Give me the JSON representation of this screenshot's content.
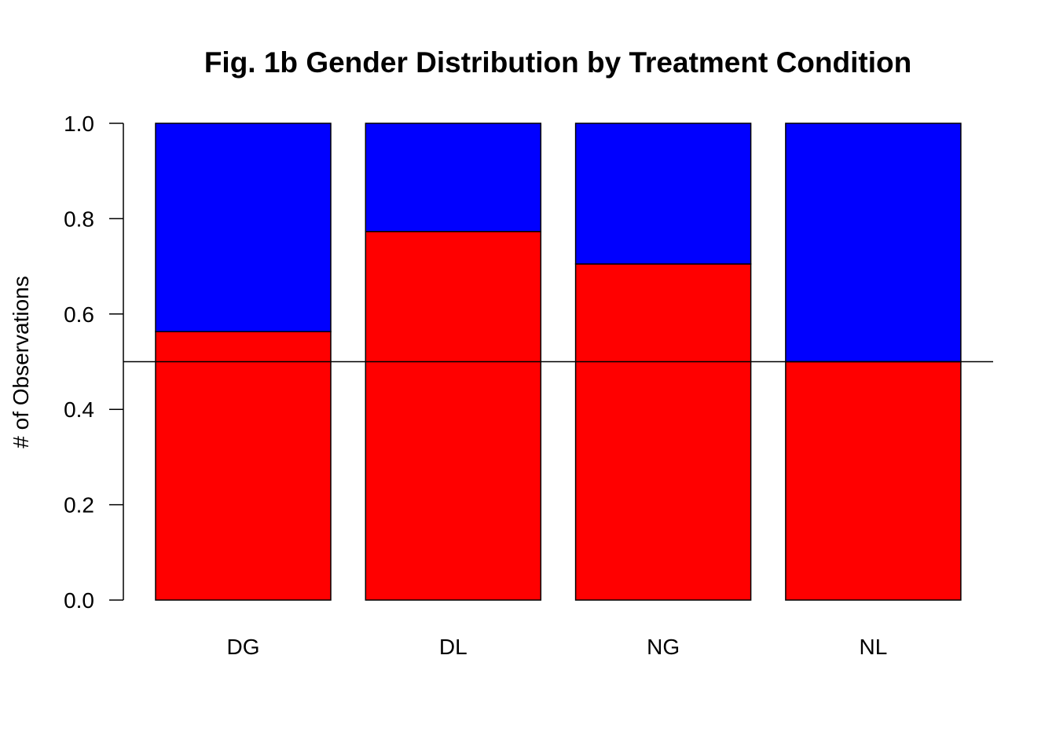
{
  "chart_data": {
    "type": "bar",
    "stacked": true,
    "title": "Fig. 1b Gender Distribution by Treatment Condition",
    "xlabel": "",
    "ylabel": "# of Observations",
    "categories": [
      "DG",
      "DL",
      "NG",
      "NL"
    ],
    "series": [
      {
        "values": [
          0.563,
          0.773,
          0.705,
          0.5
        ],
        "color": "#ff0000"
      },
      {
        "values": [
          0.437,
          0.227,
          0.295,
          0.5
        ],
        "color": "#0000ff"
      }
    ],
    "ylim": [
      0,
      1
    ],
    "yticks": [
      "0.0",
      "0.2",
      "0.4",
      "0.6",
      "0.8",
      "1.0"
    ],
    "reference_line": 0.5,
    "grid": false,
    "legend": "none"
  }
}
